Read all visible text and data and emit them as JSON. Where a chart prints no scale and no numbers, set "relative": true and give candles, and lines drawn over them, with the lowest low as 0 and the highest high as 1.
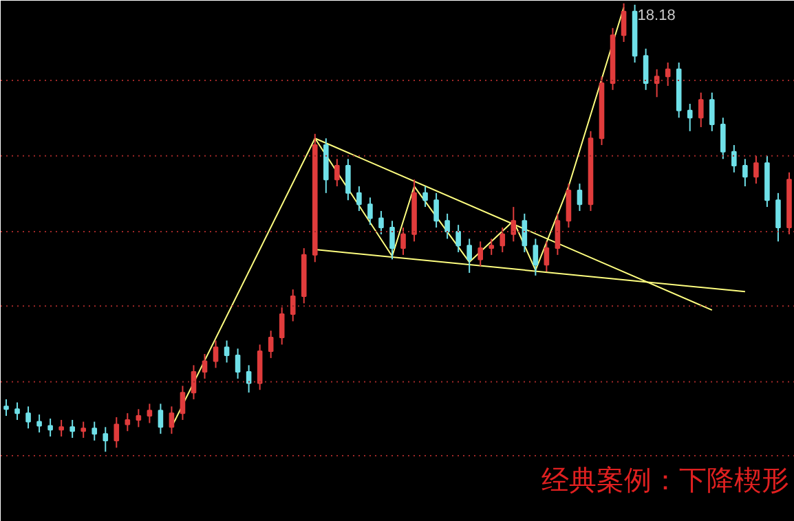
{
  "chart_data": {
    "type": "candlestick",
    "relative": true,
    "categories": [
      null,
      null,
      null,
      null,
      null,
      null,
      null,
      null,
      null,
      null,
      null,
      null,
      null,
      null,
      null,
      null,
      null,
      null,
      null,
      null,
      null,
      null,
      null,
      null,
      null,
      null,
      null,
      null,
      null,
      null,
      null,
      null,
      null,
      null,
      null,
      null,
      null,
      null,
      null,
      null,
      null,
      null,
      null,
      null,
      null,
      null,
      null,
      null,
      null,
      null,
      null,
      null,
      null,
      null,
      null,
      null,
      null,
      null,
      null,
      null,
      null,
      null,
      null,
      null,
      null,
      null,
      null,
      null,
      null,
      null,
      null,
      null
    ],
    "ohlc": [
      [
        0.101,
        0.117,
        0.08,
        0.095
      ],
      [
        0.095,
        0.11,
        0.071,
        0.086
      ],
      [
        0.086,
        0.101,
        0.052,
        0.067
      ],
      [
        0.067,
        0.083,
        0.043,
        0.058
      ],
      [
        0.058,
        0.074,
        0.034,
        0.049
      ],
      [
        0.049,
        0.071,
        0.034,
        0.055
      ],
      [
        0.055,
        0.071,
        0.031,
        0.046
      ],
      [
        0.046,
        0.067,
        0.031,
        0.052
      ],
      [
        0.052,
        0.067,
        0.025,
        0.04
      ],
      [
        0.04,
        0.055,
        0.0,
        0.025
      ],
      [
        0.025,
        0.077,
        0.009,
        0.061
      ],
      [
        0.061,
        0.086,
        0.046,
        0.071
      ],
      [
        0.071,
        0.095,
        0.055,
        0.08
      ],
      [
        0.08,
        0.107,
        0.064,
        0.092
      ],
      [
        0.092,
        0.107,
        0.04,
        0.055
      ],
      [
        0.055,
        0.101,
        0.04,
        0.086
      ],
      [
        0.086,
        0.147,
        0.071,
        0.132
      ],
      [
        0.132,
        0.193,
        0.117,
        0.178
      ],
      [
        0.178,
        0.218,
        0.163,
        0.202
      ],
      [
        0.202,
        0.248,
        0.187,
        0.233
      ],
      [
        0.233,
        0.248,
        0.199,
        0.215
      ],
      [
        0.215,
        0.23,
        0.163,
        0.178
      ],
      [
        0.178,
        0.193,
        0.132,
        0.153
      ],
      [
        0.153,
        0.239,
        0.138,
        0.224
      ],
      [
        0.224,
        0.27,
        0.209,
        0.255
      ],
      [
        0.255,
        0.322,
        0.239,
        0.307
      ],
      [
        0.307,
        0.362,
        0.291,
        0.347
      ],
      [
        0.347,
        0.454,
        0.331,
        0.439
      ],
      [
        0.439,
        0.709,
        0.423,
        0.684
      ],
      [
        0.684,
        0.699,
        0.577,
        0.607
      ],
      [
        0.607,
        0.653,
        0.592,
        0.638
      ],
      [
        0.638,
        0.653,
        0.561,
        0.577
      ],
      [
        0.577,
        0.592,
        0.537,
        0.552
      ],
      [
        0.552,
        0.567,
        0.506,
        0.521
      ],
      [
        0.521,
        0.537,
        0.485,
        0.5
      ],
      [
        0.5,
        0.515,
        0.429,
        0.454
      ],
      [
        0.454,
        0.5,
        0.439,
        0.485
      ],
      [
        0.485,
        0.607,
        0.469,
        0.577
      ],
      [
        0.577,
        0.592,
        0.546,
        0.561
      ],
      [
        0.561,
        0.577,
        0.5,
        0.515
      ],
      [
        0.515,
        0.531,
        0.475,
        0.491
      ],
      [
        0.491,
        0.506,
        0.445,
        0.46
      ],
      [
        0.46,
        0.475,
        0.399,
        0.429
      ],
      [
        0.429,
        0.469,
        0.414,
        0.454
      ],
      [
        0.454,
        0.475,
        0.439,
        0.46
      ],
      [
        0.46,
        0.5,
        0.445,
        0.485
      ],
      [
        0.485,
        0.546,
        0.469,
        0.515
      ],
      [
        0.515,
        0.531,
        0.445,
        0.46
      ],
      [
        0.46,
        0.475,
        0.393,
        0.417
      ],
      [
        0.417,
        0.469,
        0.402,
        0.454
      ],
      [
        0.454,
        0.531,
        0.439,
        0.515
      ],
      [
        0.515,
        0.598,
        0.5,
        0.583
      ],
      [
        0.583,
        0.598,
        0.537,
        0.552
      ],
      [
        0.552,
        0.715,
        0.537,
        0.699
      ],
      [
        0.699,
        0.837,
        0.684,
        0.822
      ],
      [
        0.822,
        0.945,
        0.807,
        0.929
      ],
      [
        0.929,
        1.0,
        0.914,
        0.982
      ],
      [
        0.982,
        0.997,
        0.868,
        0.883
      ],
      [
        0.883,
        0.899,
        0.807,
        0.822
      ],
      [
        0.822,
        0.853,
        0.791,
        0.837
      ],
      [
        0.837,
        0.868,
        0.816,
        0.853
      ],
      [
        0.853,
        0.868,
        0.745,
        0.761
      ],
      [
        0.761,
        0.776,
        0.715,
        0.745
      ],
      [
        0.745,
        0.801,
        0.724,
        0.785
      ],
      [
        0.785,
        0.801,
        0.715,
        0.73
      ],
      [
        0.73,
        0.745,
        0.653,
        0.669
      ],
      [
        0.669,
        0.684,
        0.623,
        0.638
      ],
      [
        0.638,
        0.653,
        0.592,
        0.613
      ],
      [
        0.613,
        0.66,
        0.598,
        0.644
      ],
      [
        0.644,
        0.66,
        0.546,
        0.561
      ],
      [
        0.561,
        0.577,
        0.469,
        0.5
      ],
      [
        0.5,
        0.623,
        0.485,
        0.607
      ]
    ],
    "colors": [
      "#6fe0e8",
      "#6fe0e8",
      "#6fe0e8",
      "#6fe0e8",
      "#6fe0e8",
      "#e03c3c",
      "#6fe0e8",
      "#e03c3c",
      "#6fe0e8",
      "#6fe0e8",
      "#e03c3c",
      "#e03c3c",
      "#e03c3c",
      "#e03c3c",
      "#6fe0e8",
      "#e03c3c",
      "#e03c3c",
      "#e03c3c",
      "#e03c3c",
      "#e03c3c",
      "#6fe0e8",
      "#6fe0e8",
      "#6fe0e8",
      "#e03c3c",
      "#e03c3c",
      "#e03c3c",
      "#e03c3c",
      "#e03c3c",
      "#e03c3c",
      "#6fe0e8",
      "#e03c3c",
      "#6fe0e8",
      "#6fe0e8",
      "#6fe0e8",
      "#6fe0e8",
      "#6fe0e8",
      "#e03c3c",
      "#e03c3c",
      "#6fe0e8",
      "#6fe0e8",
      "#6fe0e8",
      "#6fe0e8",
      "#6fe0e8",
      "#e03c3c",
      "#e03c3c",
      "#e03c3c",
      "#e03c3c",
      "#6fe0e8",
      "#6fe0e8",
      "#e03c3c",
      "#e03c3c",
      "#e03c3c",
      "#6fe0e8",
      "#e03c3c",
      "#e03c3c",
      "#e03c3c",
      "#e03c3c",
      "#6fe0e8",
      "#6fe0e8",
      "#e03c3c",
      "#e03c3c",
      "#6fe0e8",
      "#6fe0e8",
      "#e03c3c",
      "#6fe0e8",
      "#6fe0e8",
      "#6fe0e8",
      "#6fe0e8",
      "#e03c3c",
      "#6fe0e8",
      "#6fe0e8",
      "#e03c3c"
    ],
    "series": [
      {
        "type": "line",
        "color": "#ffff80",
        "values": [
          null,
          null,
          null,
          null,
          null,
          null,
          null,
          null,
          null,
          null,
          null,
          null,
          null,
          null,
          null,
          0.055,
          null,
          null,
          null,
          null,
          null,
          null,
          null,
          null,
          null,
          null,
          null,
          null,
          0.699,
          null,
          null,
          null,
          null,
          null,
          null,
          null,
          null,
          null,
          null,
          null,
          null,
          null,
          null,
          null,
          null,
          null,
          null,
          null,
          null,
          null,
          null,
          null,
          null,
          null,
          null,
          null,
          null,
          null,
          null,
          null,
          null,
          null,
          null,
          null,
          null,
          null,
          null,
          null,
          null,
          null,
          null,
          null
        ]
      },
      {
        "type": "line",
        "color": "#ffff80",
        "values": [
          null,
          null,
          null,
          null,
          null,
          null,
          null,
          null,
          null,
          null,
          null,
          null,
          null,
          null,
          null,
          null,
          null,
          null,
          null,
          null,
          null,
          null,
          null,
          null,
          null,
          null,
          null,
          null,
          0.699,
          null,
          null,
          null,
          null,
          null,
          null,
          null,
          null,
          null,
          null,
          null,
          null,
          null,
          null,
          null,
          null,
          null,
          null,
          null,
          null,
          null,
          null,
          null,
          null,
          null,
          null,
          null,
          null,
          null,
          null,
          null,
          null,
          null,
          null,
          null,
          0.316,
          null,
          null,
          null,
          null,
          null,
          null,
          null
        ]
      },
      {
        "type": "line",
        "color": "#ffff80",
        "values": [
          null,
          null,
          null,
          null,
          null,
          null,
          null,
          null,
          null,
          null,
          null,
          null,
          null,
          null,
          null,
          null,
          null,
          null,
          null,
          null,
          null,
          null,
          null,
          null,
          null,
          null,
          null,
          null,
          0.451,
          null,
          null,
          null,
          null,
          null,
          null,
          null,
          null,
          null,
          null,
          null,
          null,
          null,
          null,
          null,
          null,
          null,
          null,
          null,
          null,
          null,
          null,
          null,
          null,
          null,
          null,
          null,
          null,
          null,
          null,
          null,
          null,
          null,
          null,
          null,
          null,
          null,
          null,
          0.357,
          null,
          null,
          null,
          null
        ]
      },
      {
        "type": "line",
        "color": "#ffff80",
        "values": [
          null,
          null,
          null,
          null,
          null,
          null,
          null,
          null,
          null,
          null,
          null,
          null,
          null,
          null,
          null,
          null,
          null,
          null,
          null,
          null,
          null,
          null,
          null,
          null,
          null,
          null,
          null,
          null,
          0.699,
          null,
          null,
          null,
          null,
          null,
          null,
          0.436,
          null,
          0.592,
          null,
          null,
          null,
          null,
          0.423,
          null,
          null,
          null,
          0.515,
          null,
          0.405,
          null,
          null,
          0.592,
          null,
          null,
          null,
          null,
          0.991,
          null,
          null,
          null,
          null,
          null,
          null,
          null,
          null,
          null,
          null,
          null,
          null,
          null,
          null,
          null
        ]
      }
    ],
    "ref_lines": [
      {
        "axis": "y",
        "value": 0.828,
        "color": "#a02828",
        "line_style": "dotted"
      },
      {
        "axis": "y",
        "value": 0.66,
        "color": "#a02828",
        "line_style": "dotted"
      },
      {
        "axis": "y",
        "value": 0.491,
        "color": "#a02828",
        "line_style": "dotted"
      },
      {
        "axis": "y",
        "value": 0.325,
        "color": "#a02828",
        "line_style": "dotted"
      },
      {
        "axis": "y",
        "value": 0.156,
        "color": "#a02828",
        "line_style": "dotted"
      },
      {
        "axis": "y",
        "value": -0.009,
        "color": "#a02828",
        "line_style": "dotted"
      }
    ],
    "annotations": [
      "18.18",
      "经典案例：下降楔形"
    ]
  }
}
